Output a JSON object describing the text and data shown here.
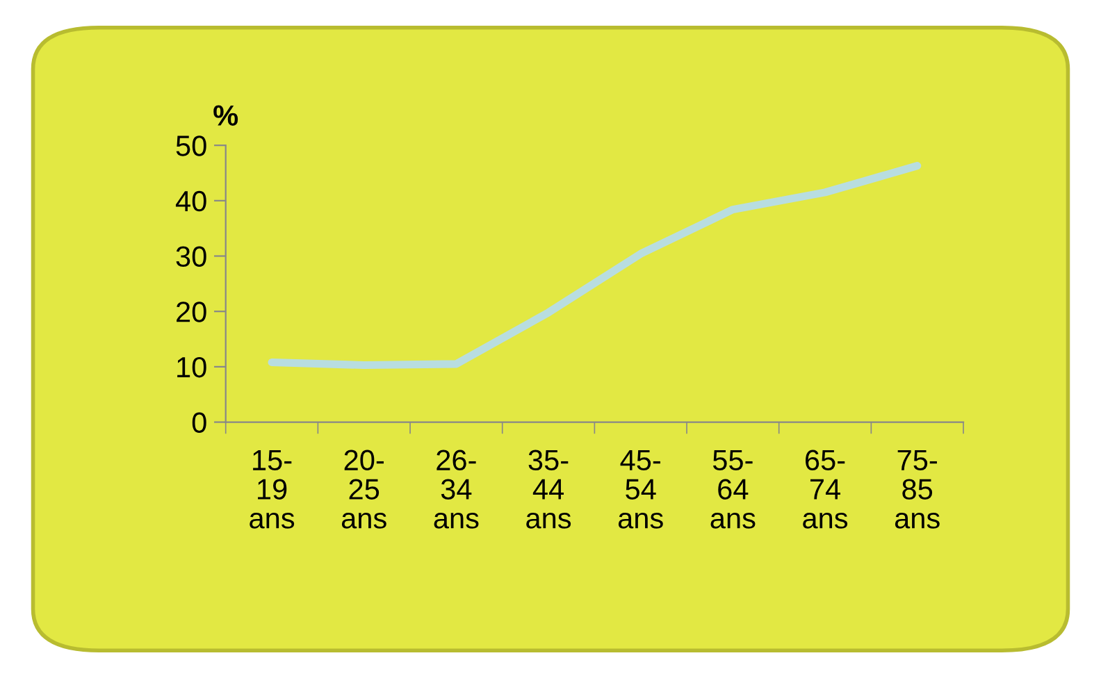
{
  "chart_data": {
    "type": "line",
    "ylabel": "%",
    "categories": [
      "15-\n19\nans",
      "20-\n25\nans",
      "26-\n34\nans",
      "35-\n44\nans",
      "45-\n54\nans",
      "55-\n64\nans",
      "65-\n74\nans",
      "75-\n85\nans"
    ],
    "series": [
      {
        "color": "#b8dde0",
        "values": [
          10.8,
          10.3,
          10.5,
          19.8,
          30.4,
          38.4,
          41.5,
          46.3
        ]
      }
    ],
    "ylim": [
      0,
      50
    ],
    "yticks": [
      0,
      10,
      20,
      30,
      40,
      50
    ],
    "grid": false,
    "legend": false,
    "marker": "none",
    "line_style": "solid"
  }
}
